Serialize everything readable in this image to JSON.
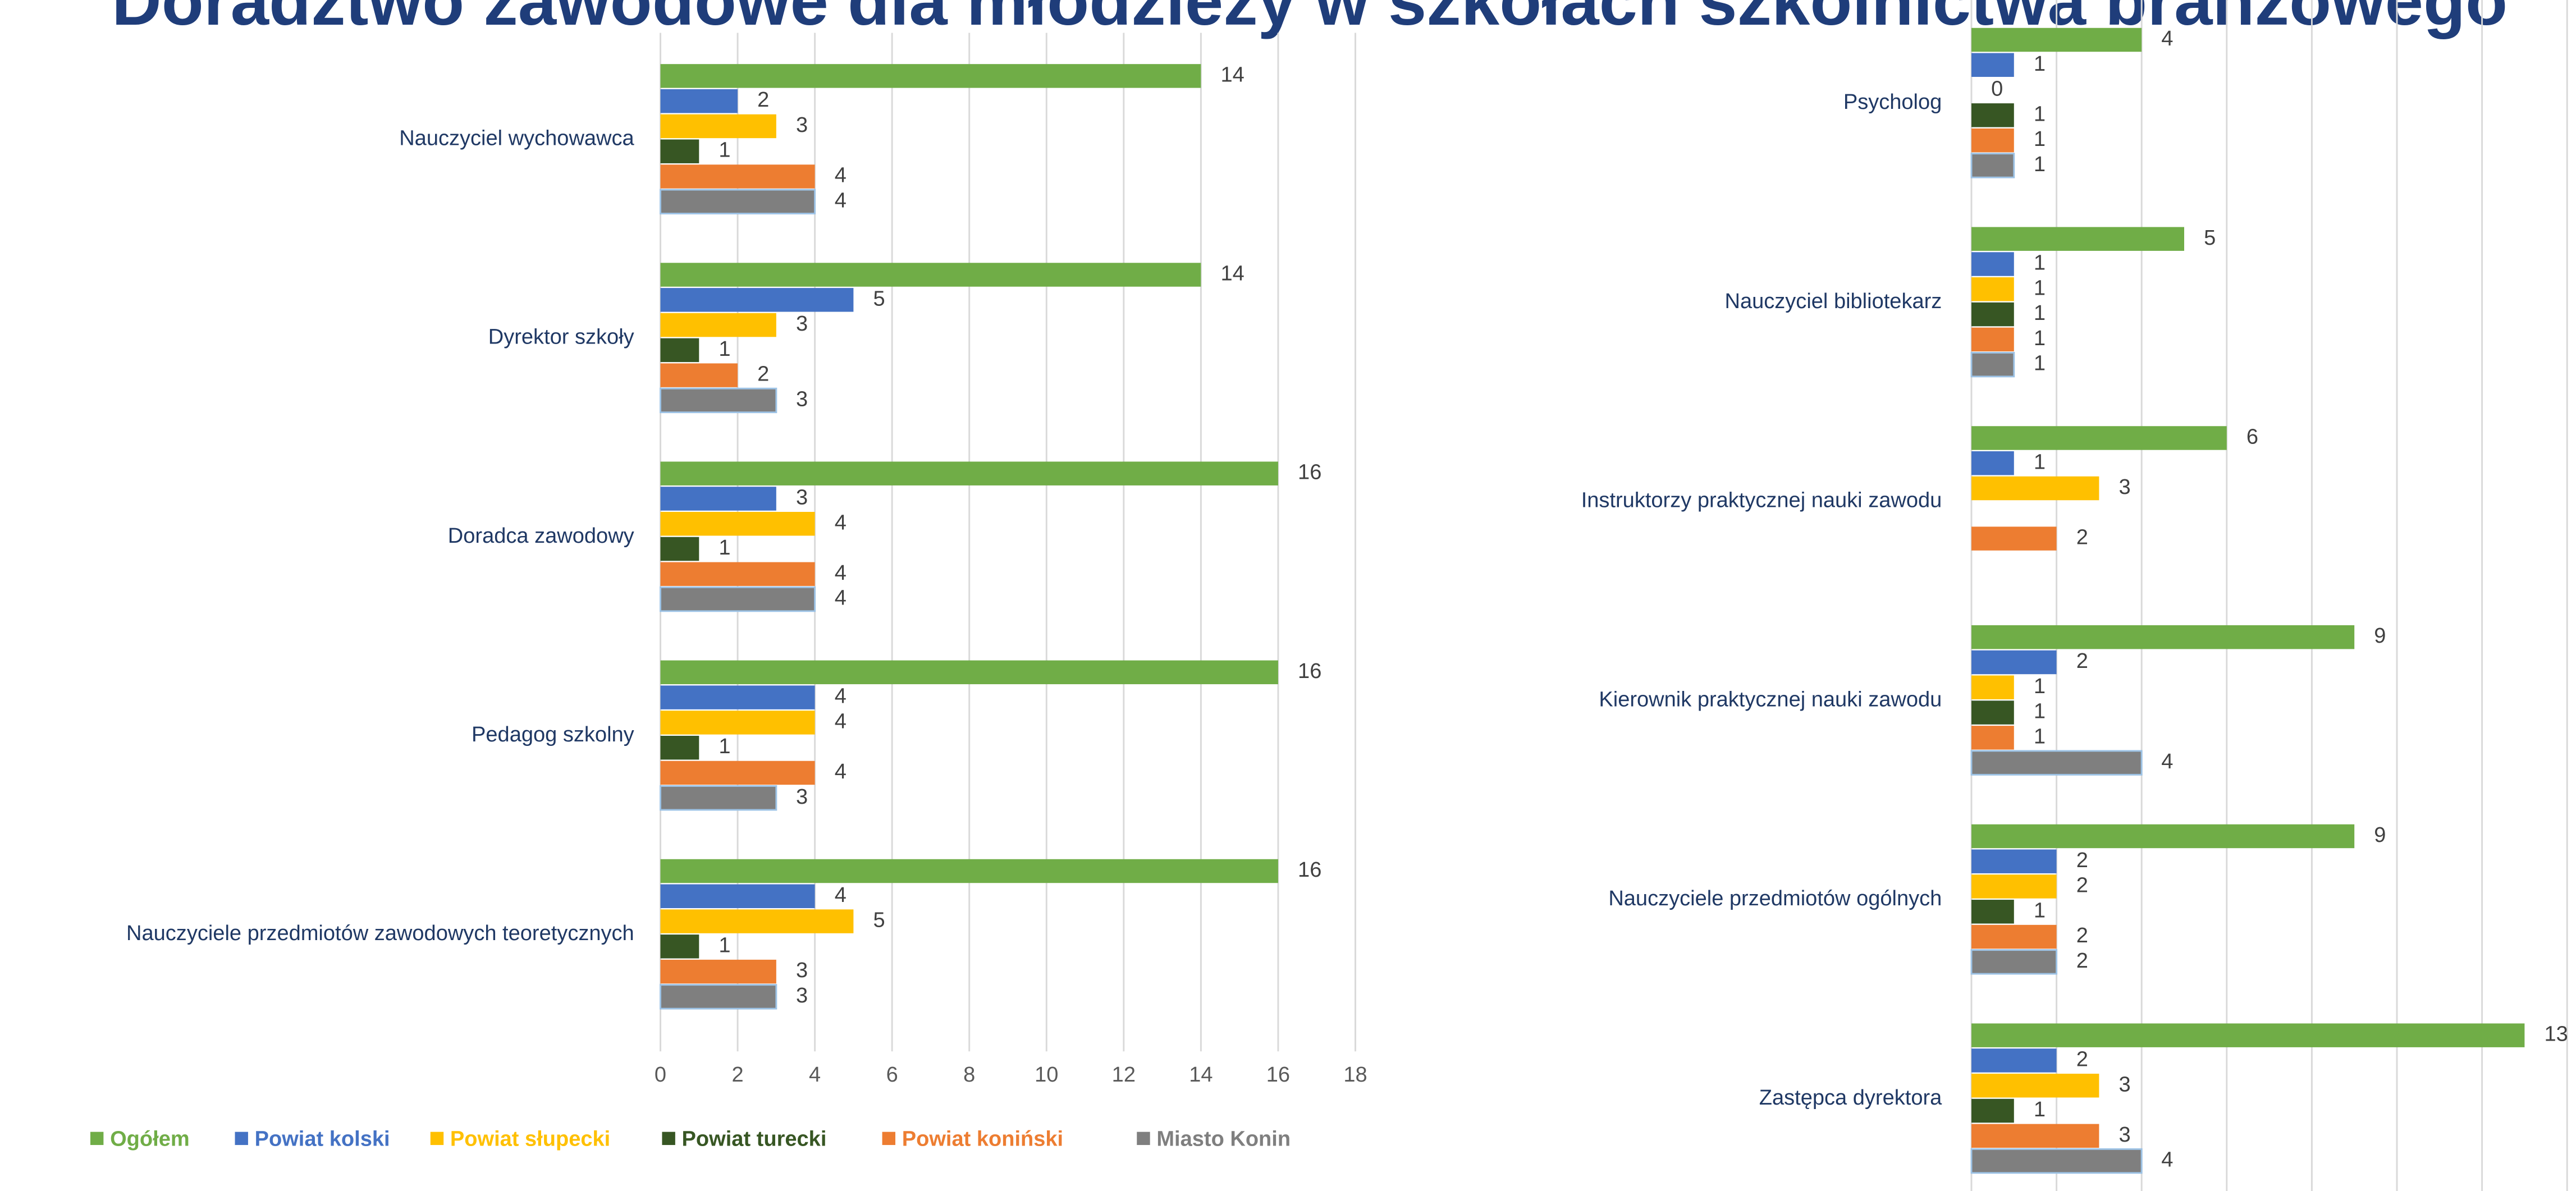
{
  "title": "Doradztwo zawodowe dla młodzieży w szkołach szkolnictwa branżowego",
  "chart_data": [
    {
      "type": "bar",
      "orientation": "horizontal",
      "categories": [
        "Nauczyciel wychowawca",
        "Dyrektor szkoły",
        "Doradca zawodowy",
        "Pedagog szkolny",
        "Nauczyciele przedmiotów zawodowych teoretycznych"
      ],
      "series": [
        {
          "name": "Ogółem",
          "color": "#70ad47",
          "values": [
            14,
            14,
            16,
            16,
            16
          ]
        },
        {
          "name": "Powiat kolski",
          "color": "#4472c4",
          "values": [
            2,
            5,
            3,
            4,
            4
          ]
        },
        {
          "name": "Powiat słupecki",
          "color": "#ffc000",
          "values": [
            3,
            3,
            4,
            4,
            5
          ]
        },
        {
          "name": "Powiat turecki",
          "color": "#375623",
          "values": [
            1,
            1,
            1,
            1,
            1
          ]
        },
        {
          "name": "Powiat koniński",
          "color": "#ed7d31",
          "values": [
            4,
            2,
            4,
            4,
            3
          ]
        },
        {
          "name": "Miasto Konin",
          "color": "#7f7f7f",
          "values": [
            4,
            3,
            4,
            3,
            3
          ]
        }
      ],
      "xlim": [
        0,
        18
      ],
      "xticks": [
        0,
        2,
        4,
        6,
        8,
        10,
        12,
        14,
        16,
        18
      ],
      "grid": true,
      "legend": "bottom"
    },
    {
      "type": "bar",
      "orientation": "horizontal",
      "categories": [
        "Psycholog",
        "Nauczyciel bibliotekarz",
        "Instruktorzy praktycznej nauki zawodu",
        "Kierownik praktycznej nauki zawodu",
        "Nauczyciele przedmiotów ogólnych",
        "Zastępca dyrektora"
      ],
      "series": [
        {
          "color": "#70ad47",
          "values": [
            4,
            5,
            6,
            9,
            9,
            13
          ]
        },
        {
          "color": "#4472c4",
          "values": [
            1,
            1,
            1,
            2,
            2,
            2
          ]
        },
        {
          "color": "#ffc000",
          "values": [
            0,
            1,
            3,
            1,
            2,
            3
          ]
        },
        {
          "color": "#375623",
          "values": [
            1,
            1,
            null,
            1,
            1,
            1
          ]
        },
        {
          "color": "#ed7d31",
          "values": [
            1,
            1,
            2,
            1,
            2,
            3
          ]
        },
        {
          "color": "#7f7f7f",
          "values": [
            1,
            1,
            null,
            4,
            2,
            4
          ]
        }
      ],
      "xlim": [
        0,
        14
      ],
      "xticks": [
        0,
        2,
        4,
        6,
        8,
        10,
        12,
        14
      ],
      "grid": true,
      "tick_labels": false
    }
  ]
}
